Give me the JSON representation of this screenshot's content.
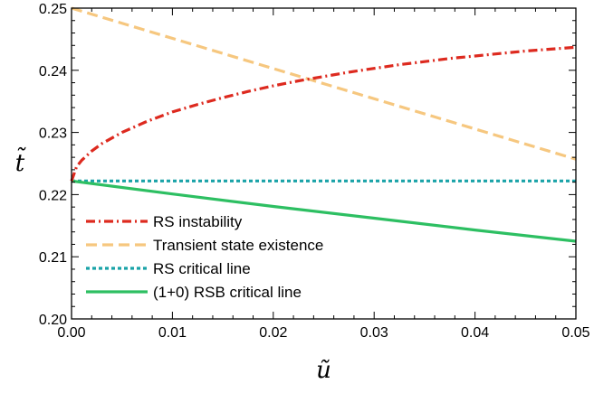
{
  "chart_data": {
    "type": "line",
    "xlabel": "ũ",
    "ylabel": "t̃",
    "xlim": [
      0.0,
      0.05
    ],
    "ylim": [
      0.2,
      0.25
    ],
    "x_ticks": [
      "0.00",
      "0.01",
      "0.02",
      "0.03",
      "0.04",
      "0.05"
    ],
    "y_ticks": [
      "0.20",
      "0.21",
      "0.22",
      "0.23",
      "0.24",
      "0.25"
    ],
    "grid": false,
    "legend_position": "bottom-left",
    "series": [
      {
        "name": "RS instability",
        "color": "#dd2a1f",
        "dash": "dash-dot",
        "x": [
          0.0,
          0.0005,
          0.001,
          0.002,
          0.003,
          0.005,
          0.0075,
          0.01,
          0.0125,
          0.015,
          0.0175,
          0.02,
          0.0225,
          0.025,
          0.0275,
          0.03,
          0.0325,
          0.035,
          0.0375,
          0.04,
          0.0425,
          0.045,
          0.0475,
          0.05
        ],
        "y": [
          0.2222,
          0.2245,
          0.2255,
          0.227,
          0.2282,
          0.23,
          0.2318,
          0.2333,
          0.2345,
          0.2356,
          0.2366,
          0.2375,
          0.2383,
          0.239,
          0.2397,
          0.2403,
          0.2409,
          0.2414,
          0.2419,
          0.2423,
          0.2427,
          0.2431,
          0.2434,
          0.2437
        ]
      },
      {
        "name": "Transient state existence",
        "color": "#f6c77f",
        "dash": "dashed",
        "x": [
          0.0,
          0.05
        ],
        "y": [
          0.25,
          0.2257
        ]
      },
      {
        "name": "RS critical line",
        "color": "#1aa3a8",
        "dash": "dotted",
        "x": [
          0.0,
          0.05
        ],
        "y": [
          0.2222,
          0.2222
        ]
      },
      {
        "name": "(1+0) RSB critical line",
        "color": "#2dbf62",
        "dash": "solid",
        "x": [
          0.0,
          0.01,
          0.02,
          0.03,
          0.04,
          0.05
        ],
        "y": [
          0.2222,
          0.2201,
          0.2181,
          0.2162,
          0.2143,
          0.2125
        ]
      }
    ]
  }
}
